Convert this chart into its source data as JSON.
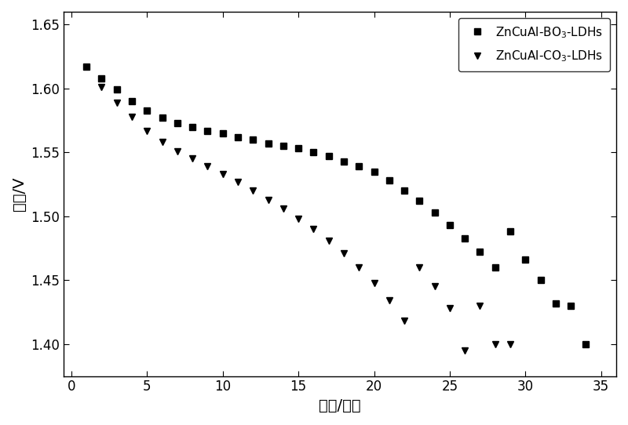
{
  "series1_label": "ZnCuAl-BO$_3$-LDHs",
  "series2_label": "ZnCuAl-CO$_3$-LDHs",
  "series1_x": [
    1,
    2,
    3,
    4,
    5,
    6,
    7,
    8,
    9,
    10,
    11,
    12,
    13,
    14,
    15,
    16,
    17,
    18,
    19,
    20,
    21,
    22,
    23,
    24,
    25,
    26,
    27,
    28,
    29,
    30,
    31,
    32,
    33,
    34
  ],
  "series1_y": [
    1.617,
    1.608,
    1.599,
    1.59,
    1.583,
    1.577,
    1.573,
    1.57,
    1.567,
    1.565,
    1.562,
    1.56,
    1.557,
    1.555,
    1.553,
    1.55,
    1.547,
    1.543,
    1.539,
    1.535,
    1.528,
    1.52,
    1.512,
    1.503,
    1.493,
    1.483,
    1.472,
    1.46,
    1.488,
    1.466,
    1.45,
    1.432,
    1.43,
    1.4
  ],
  "series2_x": [
    2,
    3,
    4,
    5,
    6,
    7,
    8,
    9,
    10,
    11,
    12,
    13,
    14,
    15,
    16,
    17,
    18,
    19,
    20,
    21,
    22,
    23,
    24,
    25,
    26,
    27,
    28,
    29
  ],
  "series2_y": [
    1.601,
    1.589,
    1.578,
    1.567,
    1.558,
    1.551,
    1.545,
    1.539,
    1.533,
    1.527,
    1.52,
    1.513,
    1.506,
    1.498,
    1.49,
    1.481,
    1.471,
    1.46,
    1.448,
    1.434,
    1.418,
    1.46,
    1.445,
    1.428,
    1.395,
    1.43,
    1.4,
    1.4
  ],
  "xlabel": "时间/分钟",
  "ylabel": "电压/V",
  "xlim": [
    -0.5,
    36
  ],
  "ylim": [
    1.375,
    1.66
  ],
  "xticks": [
    0,
    5,
    10,
    15,
    20,
    25,
    30,
    35
  ],
  "yticks": [
    1.4,
    1.45,
    1.5,
    1.55,
    1.6,
    1.65
  ],
  "marker1": "s",
  "marker2": "v",
  "markersize": 6,
  "color": "#000000",
  "legend_loc": "upper right",
  "fontsize_label": 14,
  "fontsize_tick": 12,
  "font_family": "SimHei",
  "font_fallbacks": [
    "Arial Unicode MS",
    "WenQuanYi Micro Hei",
    "STHeiti",
    "DejaVu Sans"
  ]
}
